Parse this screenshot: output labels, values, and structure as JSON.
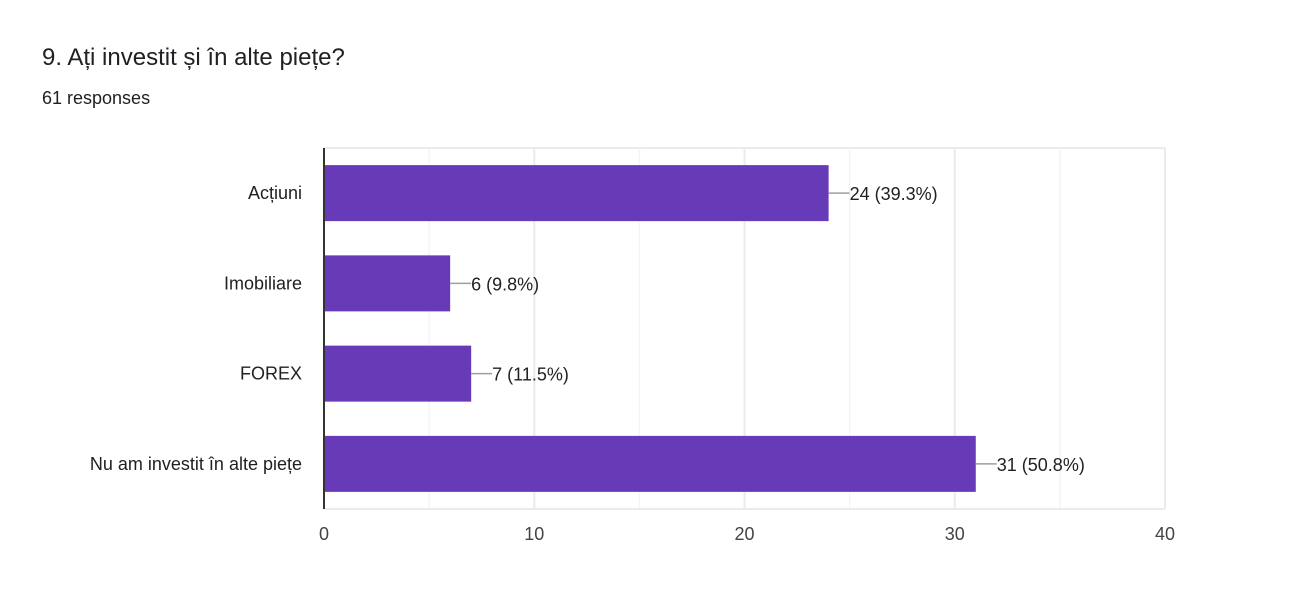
{
  "question": {
    "title": "9. Ați investit și în alte piețe?",
    "responses": "61 responses"
  },
  "colors": {
    "bar": "#673AB7",
    "grid": "#ebebeb",
    "axis": "#333333",
    "text": "#202124",
    "leader": "#9e9e9e"
  },
  "chart_data": {
    "type": "bar",
    "orientation": "horizontal",
    "categories": [
      "Acțiuni",
      "Imobiliare",
      "FOREX",
      "Nu am investit în alte piețe"
    ],
    "values": [
      24,
      6,
      7,
      31
    ],
    "data_labels": [
      "24 (39.3%)",
      "6 (9.8%)",
      "7 (11.5%)",
      "31 (50.8%)"
    ],
    "xlim": [
      0,
      40
    ],
    "xticks": [
      0,
      10,
      20,
      30,
      40
    ],
    "grid": true,
    "legend": "none"
  }
}
